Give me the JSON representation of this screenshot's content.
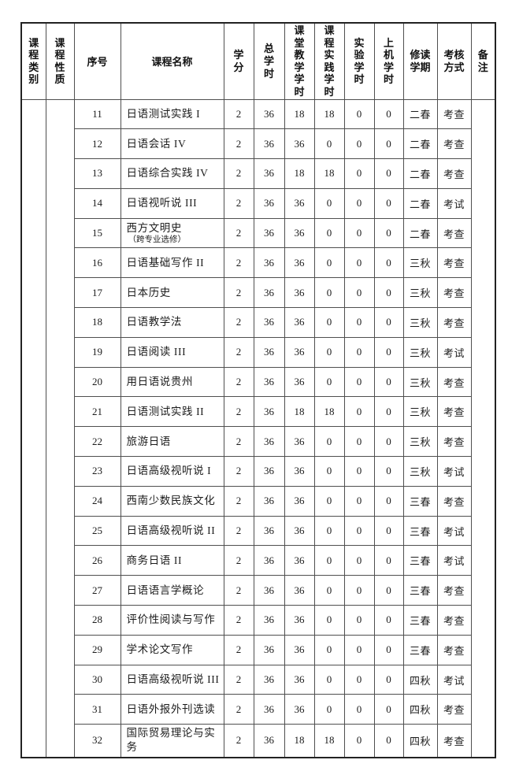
{
  "table": {
    "headers": [
      "课程类别",
      "课程性质",
      "序号",
      "课程名称",
      "学分",
      "总学时",
      "课堂教学学时",
      "课程实践学时",
      "实验学时",
      "上机学时",
      "修读学期",
      "考核方式",
      "备注"
    ],
    "category_value": "",
    "nature_value": "",
    "remark_value": "",
    "rows": [
      {
        "no": "11",
        "name": "日语测试实践 I",
        "sub": "",
        "credits": "2",
        "total": "36",
        "classroom": "18",
        "practice": "18",
        "lab": "0",
        "computer": "0",
        "term": "二春",
        "assessment": "考查"
      },
      {
        "no": "12",
        "name": "日语会话 IV",
        "sub": "",
        "credits": "2",
        "total": "36",
        "classroom": "36",
        "practice": "0",
        "lab": "0",
        "computer": "0",
        "term": "二春",
        "assessment": "考查"
      },
      {
        "no": "13",
        "name": "日语综合实践 IV",
        "sub": "",
        "credits": "2",
        "total": "36",
        "classroom": "18",
        "practice": "18",
        "lab": "0",
        "computer": "0",
        "term": "二春",
        "assessment": "考查"
      },
      {
        "no": "14",
        "name": "日语视听说 III",
        "sub": "",
        "credits": "2",
        "total": "36",
        "classroom": "36",
        "practice": "0",
        "lab": "0",
        "computer": "0",
        "term": "二春",
        "assessment": "考试"
      },
      {
        "no": "15",
        "name": "西方文明史",
        "sub": "（跨专业选修）",
        "credits": "2",
        "total": "36",
        "classroom": "36",
        "practice": "0",
        "lab": "0",
        "computer": "0",
        "term": "二春",
        "assessment": "考查"
      },
      {
        "no": "16",
        "name": "日语基础写作 II",
        "sub": "",
        "credits": "2",
        "total": "36",
        "classroom": "36",
        "practice": "0",
        "lab": "0",
        "computer": "0",
        "term": "三秋",
        "assessment": "考查"
      },
      {
        "no": "17",
        "name": "日本历史",
        "sub": "",
        "credits": "2",
        "total": "36",
        "classroom": "36",
        "practice": "0",
        "lab": "0",
        "computer": "0",
        "term": "三秋",
        "assessment": "考查"
      },
      {
        "no": "18",
        "name": "日语教学法",
        "sub": "",
        "credits": "2",
        "total": "36",
        "classroom": "36",
        "practice": "0",
        "lab": "0",
        "computer": "0",
        "term": "三秋",
        "assessment": "考查"
      },
      {
        "no": "19",
        "name": "日语阅读 III",
        "sub": "",
        "credits": "2",
        "total": "36",
        "classroom": "36",
        "practice": "0",
        "lab": "0",
        "computer": "0",
        "term": "三秋",
        "assessment": "考试"
      },
      {
        "no": "20",
        "name": "用日语说贵州",
        "sub": "",
        "credits": "2",
        "total": "36",
        "classroom": "36",
        "practice": "0",
        "lab": "0",
        "computer": "0",
        "term": "三秋",
        "assessment": "考查"
      },
      {
        "no": "21",
        "name": "日语测试实践 II",
        "sub": "",
        "credits": "2",
        "total": "36",
        "classroom": "18",
        "practice": "18",
        "lab": "0",
        "computer": "0",
        "term": "三秋",
        "assessment": "考查"
      },
      {
        "no": "22",
        "name": "旅游日语",
        "sub": "",
        "credits": "2",
        "total": "36",
        "classroom": "36",
        "practice": "0",
        "lab": "0",
        "computer": "0",
        "term": "三秋",
        "assessment": "考查"
      },
      {
        "no": "23",
        "name": "日语高级视听说 I",
        "sub": "",
        "credits": "2",
        "total": "36",
        "classroom": "36",
        "practice": "0",
        "lab": "0",
        "computer": "0",
        "term": "三秋",
        "assessment": "考试"
      },
      {
        "no": "24",
        "name": "西南少数民族文化",
        "sub": "",
        "credits": "2",
        "total": "36",
        "classroom": "36",
        "practice": "0",
        "lab": "0",
        "computer": "0",
        "term": "三春",
        "assessment": "考查"
      },
      {
        "no": "25",
        "name": "日语高级视听说 II",
        "sub": "",
        "credits": "2",
        "total": "36",
        "classroom": "36",
        "practice": "0",
        "lab": "0",
        "computer": "0",
        "term": "三春",
        "assessment": "考试"
      },
      {
        "no": "26",
        "name": "商务日语 II",
        "sub": "",
        "credits": "2",
        "total": "36",
        "classroom": "36",
        "practice": "0",
        "lab": "0",
        "computer": "0",
        "term": "三春",
        "assessment": "考试"
      },
      {
        "no": "27",
        "name": "日语语言学概论",
        "sub": "",
        "credits": "2",
        "total": "36",
        "classroom": "36",
        "practice": "0",
        "lab": "0",
        "computer": "0",
        "term": "三春",
        "assessment": "考查"
      },
      {
        "no": "28",
        "name": "评价性阅读与写作",
        "sub": "",
        "credits": "2",
        "total": "36",
        "classroom": "36",
        "practice": "0",
        "lab": "0",
        "computer": "0",
        "term": "三春",
        "assessment": "考查"
      },
      {
        "no": "29",
        "name": "学术论文写作",
        "sub": "",
        "credits": "2",
        "total": "36",
        "classroom": "36",
        "practice": "0",
        "lab": "0",
        "computer": "0",
        "term": "三春",
        "assessment": "考查"
      },
      {
        "no": "30",
        "name": "日语高级视听说 III",
        "sub": "",
        "credits": "2",
        "total": "36",
        "classroom": "36",
        "practice": "0",
        "lab": "0",
        "computer": "0",
        "term": "四秋",
        "assessment": "考试"
      },
      {
        "no": "31",
        "name": "日语外报外刊选读",
        "sub": "",
        "credits": "2",
        "total": "36",
        "classroom": "36",
        "practice": "0",
        "lab": "0",
        "computer": "0",
        "term": "四秋",
        "assessment": "考查"
      },
      {
        "no": "32",
        "name": "国际贸易理论与实务",
        "sub": "",
        "credits": "2",
        "total": "36",
        "classroom": "18",
        "practice": "18",
        "lab": "0",
        "computer": "0",
        "term": "四秋",
        "assessment": "考查"
      }
    ]
  },
  "colors": {
    "background": "#ffffff",
    "inner_border": "#4f4f4f",
    "outer_border": "#222222",
    "text": "#1c1c1c"
  }
}
